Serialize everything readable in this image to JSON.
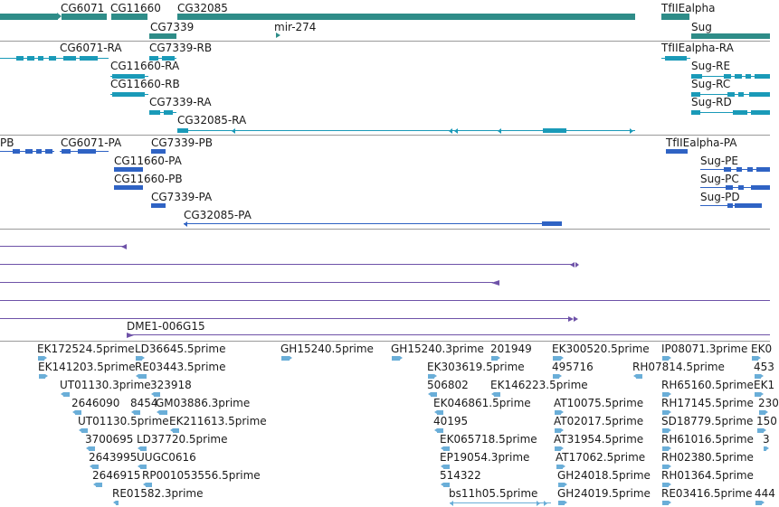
{
  "colors": {
    "gene": "#2e8c88",
    "transcript": "#1a9ab8",
    "protein": "#2f63c4",
    "alignment": "#6e52a8",
    "est": "#6aaed8",
    "separator": "#9a9a9a",
    "text": "#1a1a1a"
  },
  "tracks": {
    "genes": {
      "labels": [
        "CG6071",
        "CG11660",
        "CG32085",
        "TfIIEalpha",
        "CG7339",
        "mir-274",
        "Sug"
      ]
    },
    "transcripts": {
      "labels": [
        "CG6071-RA",
        "CG7339-RB",
        "TfIIEalpha-RA",
        "CG11660-RA",
        "Sug-RE",
        "CG11660-RB",
        "Sug-RC",
        "CG7339-RA",
        "Sug-RD",
        "CG32085-RA"
      ]
    },
    "proteins": {
      "labels": [
        "PB",
        "CG6071-PA",
        "CG7339-PB",
        "TfIIEalpha-PA",
        "CG11660-PA",
        "Sug-PE",
        "CG11660-PB",
        "Sug-PC",
        "CG7339-PA",
        "Sug-PD",
        "CG32085-PA"
      ]
    },
    "alignments": {
      "labels": [
        "DME1-006G15"
      ]
    },
    "ests": {
      "labels": [
        "EK172524.5prime",
        "LD36645.5prime",
        "GH15240.5prime",
        "GH15240.3prime",
        "201949",
        "EK300520.5prime",
        "IP08071.3prime",
        "EK0",
        "EK141203.5prime",
        "RE03443.5prime",
        "EK303619.5prime",
        "495716",
        "RH07814.5prime",
        "453",
        "UT01130.3prime",
        "323918",
        "506802",
        "EK146223.5prime",
        "RH65160.5prime",
        "EK1",
        "2646090",
        "8454",
        "GM03886.3prime",
        "EK046861.5prime",
        "AT10075.5prime",
        "RH17145.5prime",
        "230",
        "UT01130.5prime",
        "EK211613.5prime",
        "40195",
        "AT02017.5prime",
        "SD18779.5prime",
        "150",
        "3700695",
        "LD37720.5prime",
        "EK065718.5prime",
        "AT31954.5prime",
        "RH61016.5prime",
        "3",
        "2643995",
        "UUGC0616",
        "EP19054.3prime",
        "AT17062.5prime",
        "RH02380.5prime",
        "2646915",
        "RP001053556.5prime",
        "514322",
        "GH24018.5prime",
        "RH01364.5prime",
        "RE01582.3prime",
        "bs11h05.5prime",
        "GH24019.5prime",
        "RE03416.5prime",
        "444"
      ]
    }
  }
}
